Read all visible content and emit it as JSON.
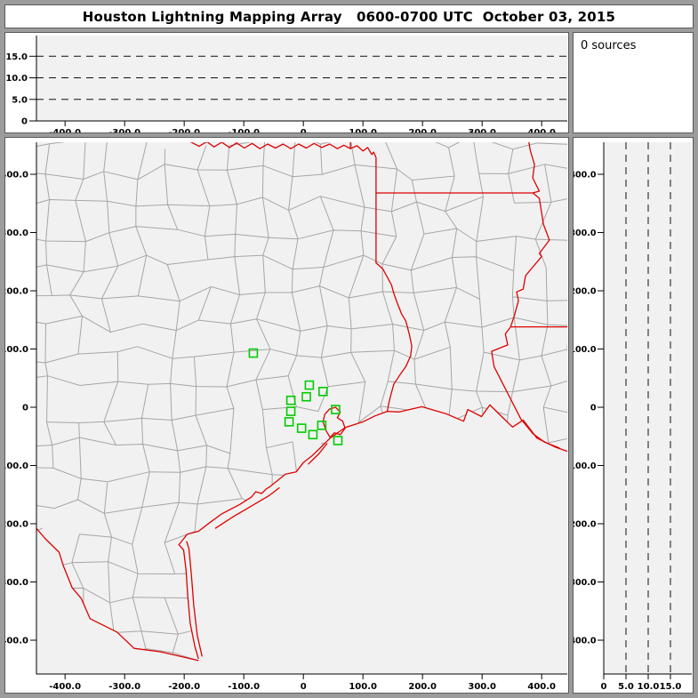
{
  "window": {
    "title": "Houston Lightning Mapping Array   0600-0700 UTC  October 03, 2015"
  },
  "sources_box": {
    "label": "0 sources"
  },
  "colors": {
    "frame": "#9c9c9c",
    "panel_border": "#5a5a5a",
    "panel_bg": "#ffffff",
    "plot_bg": "#f1f1f1",
    "axis": "#000000",
    "dash_line": "#111111",
    "county": "#a6a6a6",
    "state_boundary": "#dd0000",
    "station": "#00cc00",
    "text": "#000000"
  },
  "axes": {
    "ew_ticks": [
      {
        "label": "-400.0",
        "km": -400
      },
      {
        "label": "-300.0",
        "km": -300
      },
      {
        "label": "-200.0",
        "km": -200
      },
      {
        "label": "-100.0",
        "km": -100
      },
      {
        "label": "0",
        "km": 0
      },
      {
        "label": "100.0",
        "km": 100
      },
      {
        "label": "200.0",
        "km": 200
      },
      {
        "label": "300.0",
        "km": 300
      },
      {
        "label": "400.0",
        "km": 400
      }
    ],
    "ns_ticks": [
      {
        "label": "400.0",
        "km": 400
      },
      {
        "label": "300.0",
        "km": 300
      },
      {
        "label": "200.0",
        "km": 200
      },
      {
        "label": "100.0",
        "km": 100
      },
      {
        "label": "0",
        "km": 0
      },
      {
        "label": "-100.0",
        "km": -100
      },
      {
        "label": "-200.0",
        "km": -200
      },
      {
        "label": "-300.0",
        "km": -300
      },
      {
        "label": "-400.0",
        "km": -400
      }
    ],
    "alt_ticks": [
      {
        "label": "0",
        "km": 0
      },
      {
        "label": "5.0",
        "km": 5
      },
      {
        "label": "10.0",
        "km": 10
      },
      {
        "label": "15.0",
        "km": 15
      }
    ],
    "alt_dash_km": [
      5,
      10,
      15
    ],
    "x_km_range": [
      -448,
      443
    ],
    "y_km_range": [
      -458,
      455
    ],
    "alt_km_range": [
      0,
      19.8
    ]
  },
  "map": {
    "stations_km": [
      [
        -84,
        93
      ],
      [
        10,
        38
      ],
      [
        33,
        27
      ],
      [
        5,
        18
      ],
      [
        -21,
        12
      ],
      [
        -21,
        -7
      ],
      [
        -24,
        -25
      ],
      [
        -3,
        -36
      ],
      [
        16,
        -47
      ],
      [
        31,
        -31
      ],
      [
        54,
        -4
      ],
      [
        58,
        -57
      ]
    ],
    "boundaries": {
      "red_river": [
        [
          -190,
          456
        ],
        [
          -175,
          448
        ],
        [
          -162,
          456
        ],
        [
          -150,
          447
        ],
        [
          -137,
          455
        ],
        [
          -124,
          446
        ],
        [
          -112,
          454
        ],
        [
          -99,
          445
        ],
        [
          -86,
          453
        ],
        [
          -73,
          444
        ],
        [
          -60,
          452
        ],
        [
          -47,
          445
        ],
        [
          -34,
          452
        ],
        [
          -21,
          444
        ],
        [
          -8,
          452
        ],
        [
          5,
          445
        ],
        [
          18,
          453
        ],
        [
          31,
          446
        ],
        [
          44,
          452
        ],
        [
          57,
          444
        ],
        [
          68,
          450
        ],
        [
          79,
          444
        ],
        [
          90,
          449
        ],
        [
          100,
          440
        ],
        [
          108,
          446
        ],
        [
          115,
          434
        ],
        [
          118,
          438
        ],
        [
          122,
          429
        ]
      ],
      "ok_ar_border": [
        [
          79,
          458
        ],
        [
          79,
          444
        ]
      ],
      "tx_east_border": [
        [
          122,
          429
        ],
        [
          122,
          248
        ],
        [
          133,
          238
        ],
        [
          140,
          225
        ],
        [
          148,
          210
        ],
        [
          152,
          195
        ],
        [
          158,
          178
        ],
        [
          165,
          160
        ],
        [
          172,
          148
        ],
        [
          178,
          125
        ],
        [
          182,
          105
        ],
        [
          180,
          88
        ],
        [
          172,
          70
        ],
        [
          163,
          57
        ],
        [
          152,
          40
        ],
        [
          147,
          22
        ],
        [
          143,
          5
        ],
        [
          141,
          -7
        ]
      ],
      "ar_la_border": [
        [
          122,
          368
        ],
        [
          385,
          368
        ]
      ],
      "mississippi_river": [
        [
          378,
          458
        ],
        [
          381,
          440
        ],
        [
          388,
          417
        ],
        [
          385,
          394
        ],
        [
          396,
          371
        ],
        [
          385,
          368
        ],
        [
          396,
          359
        ],
        [
          399,
          340
        ],
        [
          403,
          314
        ],
        [
          413,
          287
        ],
        [
          396,
          264
        ],
        [
          400,
          259
        ],
        [
          373,
          226
        ],
        [
          369,
          203
        ],
        [
          358,
          198
        ],
        [
          361,
          183
        ],
        [
          354,
          157
        ],
        [
          348,
          138
        ],
        [
          339,
          126
        ],
        [
          343,
          107
        ],
        [
          316,
          96
        ],
        [
          320,
          70
        ],
        [
          335,
          40
        ],
        [
          350,
          10
        ],
        [
          365,
          -20
        ],
        [
          385,
          -45
        ],
        [
          405,
          -60
        ],
        [
          430,
          -70
        ]
      ],
      "la_ms_border": [
        [
          348,
          138
        ],
        [
          458,
          138
        ]
      ],
      "rio_grande": [
        [
          -455,
          -200
        ],
        [
          -433,
          -226
        ],
        [
          -410,
          -249
        ],
        [
          -403,
          -272
        ],
        [
          -388,
          -310
        ],
        [
          -373,
          -328
        ],
        [
          -358,
          -363
        ],
        [
          -313,
          -386
        ],
        [
          -284,
          -414
        ],
        [
          -239,
          -420
        ],
        [
          -209,
          -427
        ],
        [
          -176,
          -435
        ]
      ],
      "gulf_coast": [
        [
          -176,
          -432
        ],
        [
          -182,
          -411
        ],
        [
          -190,
          -371
        ],
        [
          -194,
          -325
        ],
        [
          -197,
          -279
        ],
        [
          -201,
          -245
        ],
        [
          -209,
          -236
        ],
        [
          -201,
          -226
        ],
        [
          -195,
          -218
        ],
        [
          -176,
          -213
        ],
        [
          -157,
          -198
        ],
        [
          -137,
          -183
        ],
        [
          -107,
          -167
        ],
        [
          -87,
          -154
        ],
        [
          -80,
          -145
        ],
        [
          -70,
          -148
        ],
        [
          -62,
          -140
        ],
        [
          -57,
          -137
        ],
        [
          -30,
          -115
        ],
        [
          -12,
          -111
        ],
        [
          0,
          -95
        ],
        [
          15,
          -83
        ],
        [
          30,
          -68
        ],
        [
          45,
          -53
        ],
        [
          70,
          -35
        ],
        [
          100,
          -25
        ],
        [
          120,
          -15
        ],
        [
          141,
          -7
        ],
        [
          161,
          -8
        ],
        [
          199,
          1
        ],
        [
          239,
          -11
        ],
        [
          269,
          -24
        ],
        [
          276,
          -4
        ],
        [
          299,
          -16
        ],
        [
          313,
          4
        ],
        [
          336,
          -19
        ],
        [
          351,
          -34
        ],
        [
          369,
          -22
        ],
        [
          392,
          -53
        ],
        [
          422,
          -68
        ],
        [
          455,
          -80
        ]
      ],
      "galveston_bay": [
        [
          45,
          -52
        ],
        [
          38,
          -40
        ],
        [
          33,
          -25
        ],
        [
          36,
          -12
        ],
        [
          44,
          -3
        ],
        [
          54,
          0
        ],
        [
          62,
          -8
        ],
        [
          57,
          -18
        ],
        [
          66,
          -24
        ],
        [
          70,
          -36
        ],
        [
          62,
          -47
        ],
        [
          52,
          -44
        ],
        [
          45,
          -52
        ]
      ],
      "padre_island": [
        [
          -170,
          -428
        ],
        [
          -178,
          -392
        ],
        [
          -184,
          -340
        ],
        [
          -188,
          -287
        ],
        [
          -192,
          -243
        ],
        [
          -196,
          -230
        ]
      ],
      "matagorda_island": [
        [
          -148,
          -208
        ],
        [
          -118,
          -188
        ],
        [
          -88,
          -170
        ],
        [
          -58,
          -152
        ],
        [
          -40,
          -138
        ]
      ],
      "galveston_island": [
        [
          8,
          -98
        ],
        [
          26,
          -80
        ],
        [
          40,
          -62
        ]
      ]
    }
  }
}
